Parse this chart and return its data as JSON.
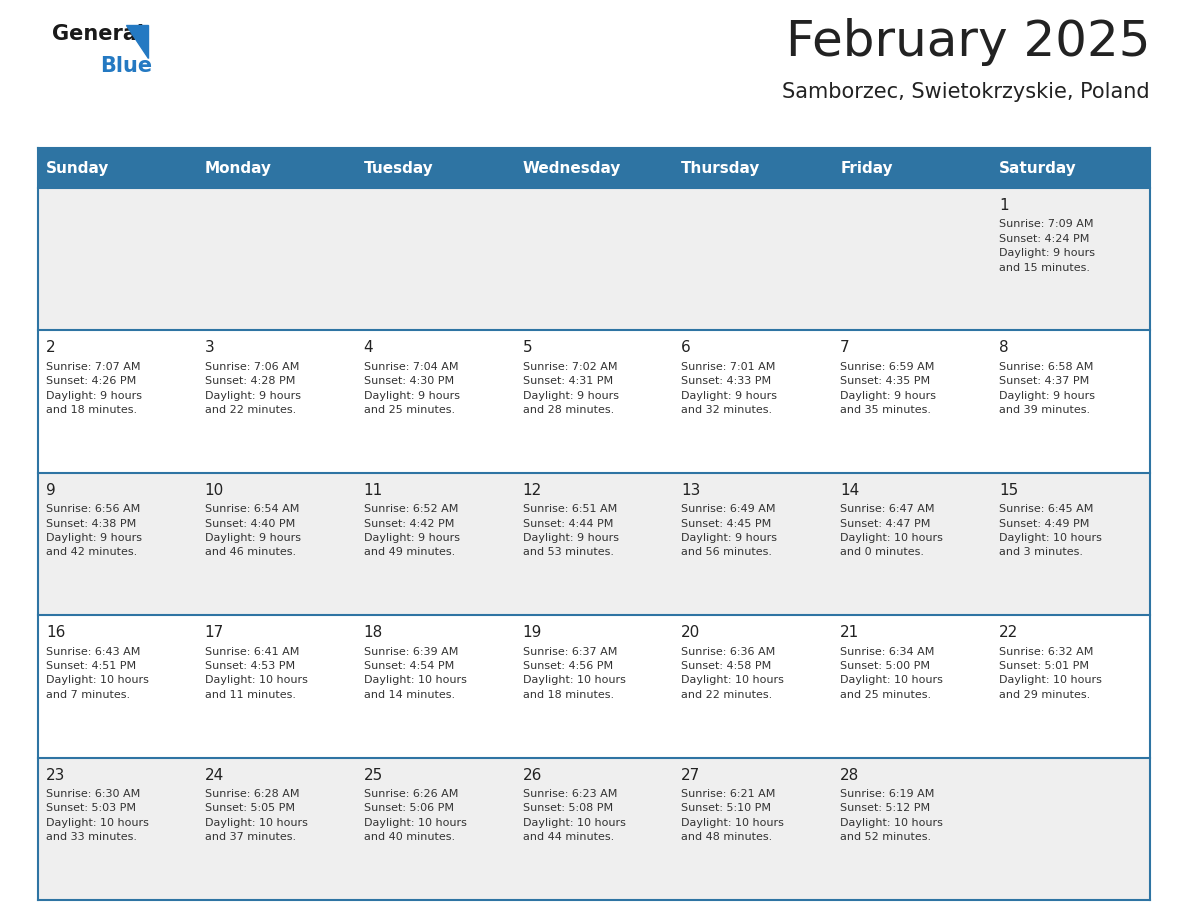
{
  "title": "February 2025",
  "subtitle": "Samborzec, Swietokrzyskie, Poland",
  "days_of_week": [
    "Sunday",
    "Monday",
    "Tuesday",
    "Wednesday",
    "Thursday",
    "Friday",
    "Saturday"
  ],
  "header_bg": "#2e74a3",
  "header_text": "#ffffff",
  "row_bg_odd": "#efefef",
  "row_bg_even": "#ffffff",
  "cell_text": "#333333",
  "day_num_color": "#222222",
  "divider_color": "#2e74a3",
  "logo_general_color": "#1a1a1a",
  "logo_blue_color": "#2479c2",
  "weeks": [
    [
      {
        "day": null,
        "info": null
      },
      {
        "day": null,
        "info": null
      },
      {
        "day": null,
        "info": null
      },
      {
        "day": null,
        "info": null
      },
      {
        "day": null,
        "info": null
      },
      {
        "day": null,
        "info": null
      },
      {
        "day": 1,
        "info": "Sunrise: 7:09 AM\nSunset: 4:24 PM\nDaylight: 9 hours\nand 15 minutes."
      }
    ],
    [
      {
        "day": 2,
        "info": "Sunrise: 7:07 AM\nSunset: 4:26 PM\nDaylight: 9 hours\nand 18 minutes."
      },
      {
        "day": 3,
        "info": "Sunrise: 7:06 AM\nSunset: 4:28 PM\nDaylight: 9 hours\nand 22 minutes."
      },
      {
        "day": 4,
        "info": "Sunrise: 7:04 AM\nSunset: 4:30 PM\nDaylight: 9 hours\nand 25 minutes."
      },
      {
        "day": 5,
        "info": "Sunrise: 7:02 AM\nSunset: 4:31 PM\nDaylight: 9 hours\nand 28 minutes."
      },
      {
        "day": 6,
        "info": "Sunrise: 7:01 AM\nSunset: 4:33 PM\nDaylight: 9 hours\nand 32 minutes."
      },
      {
        "day": 7,
        "info": "Sunrise: 6:59 AM\nSunset: 4:35 PM\nDaylight: 9 hours\nand 35 minutes."
      },
      {
        "day": 8,
        "info": "Sunrise: 6:58 AM\nSunset: 4:37 PM\nDaylight: 9 hours\nand 39 minutes."
      }
    ],
    [
      {
        "day": 9,
        "info": "Sunrise: 6:56 AM\nSunset: 4:38 PM\nDaylight: 9 hours\nand 42 minutes."
      },
      {
        "day": 10,
        "info": "Sunrise: 6:54 AM\nSunset: 4:40 PM\nDaylight: 9 hours\nand 46 minutes."
      },
      {
        "day": 11,
        "info": "Sunrise: 6:52 AM\nSunset: 4:42 PM\nDaylight: 9 hours\nand 49 minutes."
      },
      {
        "day": 12,
        "info": "Sunrise: 6:51 AM\nSunset: 4:44 PM\nDaylight: 9 hours\nand 53 minutes."
      },
      {
        "day": 13,
        "info": "Sunrise: 6:49 AM\nSunset: 4:45 PM\nDaylight: 9 hours\nand 56 minutes."
      },
      {
        "day": 14,
        "info": "Sunrise: 6:47 AM\nSunset: 4:47 PM\nDaylight: 10 hours\nand 0 minutes."
      },
      {
        "day": 15,
        "info": "Sunrise: 6:45 AM\nSunset: 4:49 PM\nDaylight: 10 hours\nand 3 minutes."
      }
    ],
    [
      {
        "day": 16,
        "info": "Sunrise: 6:43 AM\nSunset: 4:51 PM\nDaylight: 10 hours\nand 7 minutes."
      },
      {
        "day": 17,
        "info": "Sunrise: 6:41 AM\nSunset: 4:53 PM\nDaylight: 10 hours\nand 11 minutes."
      },
      {
        "day": 18,
        "info": "Sunrise: 6:39 AM\nSunset: 4:54 PM\nDaylight: 10 hours\nand 14 minutes."
      },
      {
        "day": 19,
        "info": "Sunrise: 6:37 AM\nSunset: 4:56 PM\nDaylight: 10 hours\nand 18 minutes."
      },
      {
        "day": 20,
        "info": "Sunrise: 6:36 AM\nSunset: 4:58 PM\nDaylight: 10 hours\nand 22 minutes."
      },
      {
        "day": 21,
        "info": "Sunrise: 6:34 AM\nSunset: 5:00 PM\nDaylight: 10 hours\nand 25 minutes."
      },
      {
        "day": 22,
        "info": "Sunrise: 6:32 AM\nSunset: 5:01 PM\nDaylight: 10 hours\nand 29 minutes."
      }
    ],
    [
      {
        "day": 23,
        "info": "Sunrise: 6:30 AM\nSunset: 5:03 PM\nDaylight: 10 hours\nand 33 minutes."
      },
      {
        "day": 24,
        "info": "Sunrise: 6:28 AM\nSunset: 5:05 PM\nDaylight: 10 hours\nand 37 minutes."
      },
      {
        "day": 25,
        "info": "Sunrise: 6:26 AM\nSunset: 5:06 PM\nDaylight: 10 hours\nand 40 minutes."
      },
      {
        "day": 26,
        "info": "Sunrise: 6:23 AM\nSunset: 5:08 PM\nDaylight: 10 hours\nand 44 minutes."
      },
      {
        "day": 27,
        "info": "Sunrise: 6:21 AM\nSunset: 5:10 PM\nDaylight: 10 hours\nand 48 minutes."
      },
      {
        "day": 28,
        "info": "Sunrise: 6:19 AM\nSunset: 5:12 PM\nDaylight: 10 hours\nand 52 minutes."
      },
      {
        "day": null,
        "info": null
      }
    ]
  ]
}
